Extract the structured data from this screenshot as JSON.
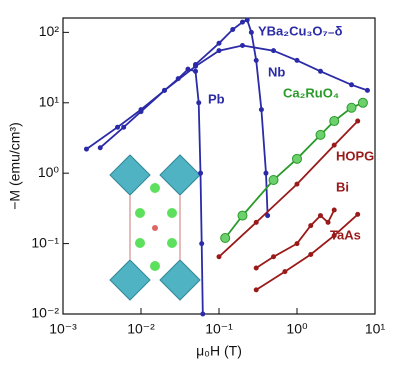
{
  "chart_data": {
    "type": "line",
    "x_label": "μ₀H (T)",
    "y_label": "−M (emu/cm³)",
    "xlog": true,
    "ylog": true,
    "xlim": [
      0.001,
      10
    ],
    "ylim": [
      0.01,
      160
    ],
    "xticks": [
      {
        "value": 0.001,
        "label": "10⁻³"
      },
      {
        "value": 0.01,
        "label": "10⁻²"
      },
      {
        "value": 0.1,
        "label": "10⁻¹"
      },
      {
        "value": 1,
        "label": "10⁰"
      },
      {
        "value": 10,
        "label": "10¹"
      }
    ],
    "yticks": [
      {
        "value": 0.01,
        "label": "10⁻²"
      },
      {
        "value": 0.1,
        "label": "10⁻¹"
      },
      {
        "value": 1,
        "label": "10⁰"
      },
      {
        "value": 10,
        "label": "10¹"
      },
      {
        "value": 100,
        "label": "10²"
      }
    ],
    "series": [
      {
        "name": "YBa₂Cu₃O₇₋δ",
        "color": "#2b2ba8",
        "marker": "small",
        "x": [
          0.002,
          0.005,
          0.01,
          0.02,
          0.05,
          0.1,
          0.2,
          0.5,
          1,
          2,
          5,
          8
        ],
        "values": [
          2.2,
          4.5,
          8,
          15,
          33,
          55,
          65,
          55,
          40,
          28,
          18,
          15
        ]
      },
      {
        "name": "Nb",
        "color": "#2b2ba8",
        "marker": "small",
        "x": [
          0.05,
          0.1,
          0.15,
          0.2,
          0.23,
          0.26,
          0.3,
          0.35,
          0.4,
          0.42
        ],
        "values": [
          35,
          70,
          110,
          140,
          150,
          100,
          40,
          8,
          1,
          0.25
        ]
      },
      {
        "name": "Pb",
        "color": "#2b2ba8",
        "marker": "small",
        "x": [
          0.003,
          0.006,
          0.01,
          0.02,
          0.03,
          0.04,
          0.05,
          0.055,
          0.058,
          0.06,
          0.062
        ],
        "values": [
          2.3,
          4.5,
          7.5,
          15,
          22,
          30,
          28,
          10,
          1,
          0.1,
          0.01
        ]
      },
      {
        "name": "Ca₂RuO₄",
        "color": "#2a9a2a",
        "marker": "ball",
        "x": [
          0.12,
          0.2,
          0.5,
          1,
          2,
          3,
          5,
          7
        ],
        "values": [
          0.12,
          0.25,
          0.8,
          1.6,
          3.5,
          5.5,
          8.5,
          10
        ]
      },
      {
        "name": "HOPG",
        "color": "#9a1a1a",
        "marker": "small",
        "x": [
          0.1,
          0.3,
          1,
          3,
          6
        ],
        "values": [
          0.065,
          0.2,
          0.7,
          2.5,
          5.5
        ]
      },
      {
        "name": "Bi",
        "color": "#9a1a1a",
        "marker": "small",
        "x": [
          0.3,
          0.5,
          1,
          1.5,
          2,
          2.5,
          3
        ],
        "values": [
          0.045,
          0.065,
          0.1,
          0.18,
          0.25,
          0.2,
          0.3
        ]
      },
      {
        "name": "TaAs",
        "color": "#9a1a1a",
        "marker": "small",
        "x": [
          0.3,
          0.7,
          1.5,
          3,
          6
        ],
        "values": [
          0.022,
          0.04,
          0.07,
          0.13,
          0.26
        ]
      }
    ]
  }
}
